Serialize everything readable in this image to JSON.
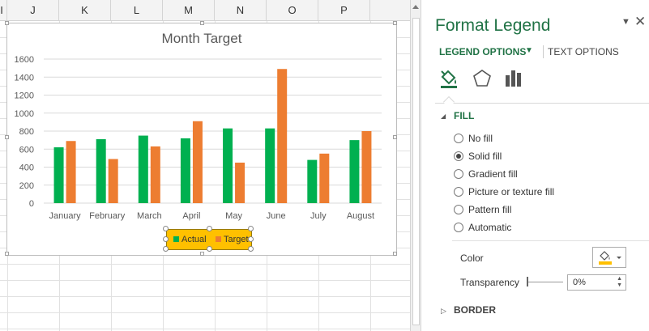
{
  "sheet": {
    "column_headers": [
      "I",
      "J",
      "K",
      "L",
      "M",
      "N",
      "O",
      "P"
    ]
  },
  "chart_data": {
    "type": "bar",
    "title": "Month Target",
    "categories": [
      "January",
      "February",
      "March",
      "April",
      "May",
      "June",
      "July",
      "August"
    ],
    "series": [
      {
        "name": "Actual",
        "color": "#00b050",
        "values": [
          620,
          710,
          750,
          720,
          830,
          830,
          480,
          700
        ]
      },
      {
        "name": "Target",
        "color": "#ed7d31",
        "values": [
          690,
          490,
          630,
          910,
          450,
          1490,
          550,
          800
        ]
      }
    ],
    "yticks": [
      "0",
      "200",
      "400",
      "600",
      "800",
      "1000",
      "1200",
      "1400",
      "1600"
    ],
    "ylim": [
      0,
      1600
    ],
    "grid": true,
    "legend_position": "bottom",
    "legend_fill": "#ffc000",
    "legend_selected": true
  },
  "pane": {
    "title": "Format Legend",
    "dropdown_icon": "caret-down-icon",
    "close_icon": "close-icon",
    "tabs": {
      "legend_options": "LEGEND OPTIONS",
      "text_options": "TEXT OPTIONS"
    },
    "option_icons": [
      "fill-line-icon",
      "effects-pentagon-icon",
      "legend-options-bars-icon"
    ],
    "fill_section": {
      "heading": "FILL",
      "options": [
        "No fill",
        "Solid fill",
        "Gradient fill",
        "Picture or texture fill",
        "Pattern fill",
        "Automatic"
      ],
      "selected": "Solid fill",
      "color_label": "Color",
      "color_swatch": "#ffc000",
      "transparency_label": "Transparency",
      "transparency_value": "0%"
    },
    "border_section": {
      "heading": "BORDER"
    },
    "accent": "#217346"
  }
}
